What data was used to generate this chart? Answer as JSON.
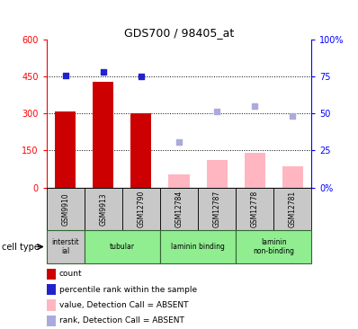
{
  "title": "GDS700 / 98405_at",
  "samples": [
    "GSM9910",
    "GSM9913",
    "GSM12790",
    "GSM12784",
    "GSM12787",
    "GSM12778",
    "GSM12781"
  ],
  "bar_values_present": [
    308,
    430,
    300,
    null,
    null,
    null,
    null
  ],
  "bar_values_absent": [
    null,
    null,
    null,
    55,
    110,
    140,
    85
  ],
  "scatter_rank_present": [
    455,
    470,
    450,
    null,
    null,
    null,
    null
  ],
  "scatter_rank_absent": [
    null,
    null,
    null,
    185,
    310,
    330,
    290
  ],
  "ylim": [
    0,
    600
  ],
  "y2lim": [
    0,
    100
  ],
  "yticks": [
    0,
    150,
    300,
    450,
    600
  ],
  "ytick_labels": [
    "0",
    "150",
    "300",
    "450",
    "600"
  ],
  "y2ticks": [
    0,
    25,
    50,
    75,
    100
  ],
  "y2tick_labels": [
    "0%",
    "25",
    "50",
    "75",
    "100%"
  ],
  "hlines": [
    150,
    300,
    450
  ],
  "bar_color_present": "#CC0000",
  "bar_color_absent": "#FFB6C1",
  "scatter_color_present": "#2222CC",
  "scatter_color_absent": "#AAAADD",
  "cell_types": [
    {
      "label": "interstit\nial",
      "start": 0,
      "end": 1,
      "color": "#C8C8C8"
    },
    {
      "label": "tubular",
      "start": 1,
      "end": 3,
      "color": "#90EE90"
    },
    {
      "label": "laminin binding",
      "start": 3,
      "end": 5,
      "color": "#90EE90"
    },
    {
      "label": "laminin\nnon-binding",
      "start": 5,
      "end": 7,
      "color": "#90EE90"
    }
  ],
  "legend_items": [
    {
      "label": "count",
      "color": "#CC0000"
    },
    {
      "label": "percentile rank within the sample",
      "color": "#2222CC"
    },
    {
      "label": "value, Detection Call = ABSENT",
      "color": "#FFB6C1"
    },
    {
      "label": "rank, Detection Call = ABSENT",
      "color": "#AAAADD"
    }
  ],
  "cell_type_label": "cell type",
  "bar_width": 0.55
}
